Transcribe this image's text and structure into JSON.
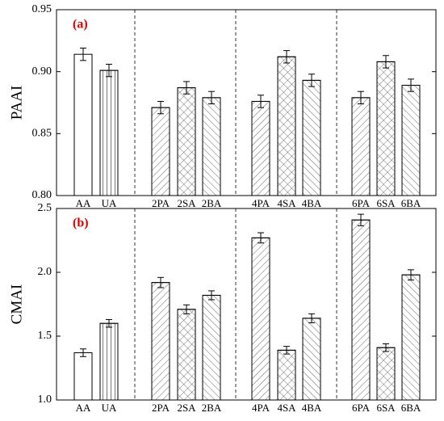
{
  "chart_data": [
    {
      "type": "bar",
      "annotation": "(a)",
      "ylabel": "PAAI",
      "categories": [
        "AA",
        "UA",
        "2PA",
        "2SA",
        "2BA",
        "4PA",
        "4SA",
        "4BA",
        "6PA",
        "6SA",
        "6BA"
      ],
      "values": [
        0.914,
        0.901,
        0.871,
        0.887,
        0.879,
        0.876,
        0.912,
        0.893,
        0.879,
        0.908,
        0.889
      ],
      "errors": [
        0.005,
        0.005,
        0.005,
        0.005,
        0.005,
        0.005,
        0.005,
        0.005,
        0.005,
        0.005,
        0.005
      ],
      "color": "#ffffff",
      "ylim": [
        0.8,
        0.95
      ],
      "yticks": [
        {
          "value": 0.8,
          "label": "0.80"
        },
        0.85,
        {
          "value": 0.9,
          "label": "0.90"
        },
        0.95
      ]
    },
    {
      "type": "bar",
      "annotation": "(b)",
      "ylabel": "CMAI",
      "categories": [
        "AA",
        "UA",
        "2PA",
        "2SA",
        "2BA",
        "4PA",
        "4SA",
        "4BA",
        "6PA",
        "6SA",
        "6BA"
      ],
      "values": [
        1.37,
        1.6,
        1.92,
        1.71,
        1.82,
        2.27,
        1.39,
        1.64,
        2.41,
        1.41,
        1.98
      ],
      "errors": [
        0.03,
        0.03,
        0.04,
        0.035,
        0.035,
        0.04,
        0.03,
        0.035,
        0.045,
        0.03,
        0.04
      ],
      "color": "#ffffff",
      "ylim": [
        1.0,
        2.5
      ],
      "yticks": [
        {
          "value": 1.0,
          "label": "1.0"
        },
        1.5,
        {
          "value": 2.0,
          "label": "2.0"
        },
        2.5
      ]
    }
  ]
}
